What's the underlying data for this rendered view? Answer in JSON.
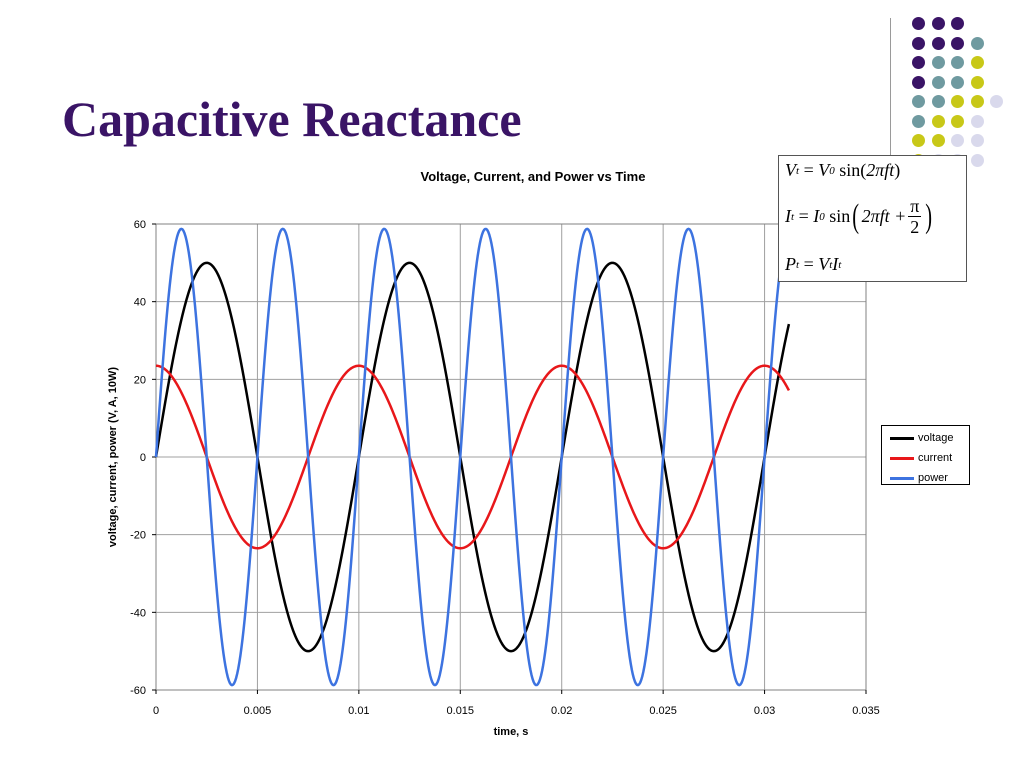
{
  "slide": {
    "title": "Capacitive Reactance"
  },
  "decor": {
    "dot_colors": {
      "purple": "#3a1466",
      "teal": "#6f9aa0",
      "yellow": "#c8c818",
      "lavender": "#d9d9ec"
    },
    "dot_rows": [
      [
        "purple",
        "purple",
        "purple"
      ],
      [
        "purple",
        "purple",
        "purple",
        "teal"
      ],
      [
        "purple",
        "teal",
        "teal",
        "yellow"
      ],
      [
        "purple",
        "teal",
        "teal",
        "yellow"
      ],
      [
        "teal",
        "teal",
        "yellow",
        "yellow",
        "lavender"
      ],
      [
        "teal",
        "yellow",
        "yellow",
        "lavender"
      ],
      [
        "yellow",
        "yellow",
        "lavender",
        "lavender"
      ],
      [
        "yellow",
        "lavender",
        "lavender",
        "lavender"
      ]
    ]
  },
  "formulas": {
    "v": {
      "lhs": "V",
      "lhs_sub": "t",
      "eq": "=",
      "rhs": "V",
      "rhs_sub": "0",
      "fn": "sin",
      "arg": "2πft"
    },
    "i": {
      "lhs": "I",
      "lhs_sub": "t",
      "eq": "=",
      "rhs": "I",
      "rhs_sub": "0",
      "fn": "sin",
      "arg": "2πft +",
      "num": "π",
      "den": "2"
    },
    "p": {
      "lhs": "P",
      "lhs_sub": "t",
      "eq": "=",
      "a": "V",
      "a_sub": "t",
      "b": "I",
      "b_sub": "t"
    }
  },
  "chart_data": {
    "type": "line",
    "title": "Voltage, Current, and Power vs Time",
    "xlabel": "time, s",
    "ylabel": "voltage, current, power (V, A, 10W)",
    "xlim": [
      0,
      0.035
    ],
    "ylim": [
      -60,
      60
    ],
    "xticks": [
      0,
      0.005,
      0.01,
      0.015,
      0.02,
      0.025,
      0.03,
      0.035
    ],
    "xtick_labels": [
      "0",
      "0.005",
      "0.01",
      "0.015",
      "0.02",
      "0.025",
      "0.03",
      "0.035"
    ],
    "yticks": [
      -60,
      -40,
      -20,
      0,
      20,
      40,
      60
    ],
    "ytick_labels": [
      "-60",
      "-40",
      "-20",
      "0",
      "20",
      "40",
      "60"
    ],
    "grid": "vertical and horizontal",
    "legend_position": "right",
    "x_end": 0.0312,
    "series": [
      {
        "name": "voltage",
        "color": "#000000",
        "amplitude": 50,
        "frequency_hz": 100,
        "phase": 0,
        "function": "amplitude*sin(2*pi*f*t)"
      },
      {
        "name": "current",
        "color": "#e8171a",
        "amplitude": 23.5,
        "frequency_hz": 100,
        "phase": 1.5708,
        "function": "amplitude*sin(2*pi*f*t + pi/2)"
      },
      {
        "name": "power",
        "color": "#3d73e0",
        "amplitude": 58.75,
        "frequency_hz": 200,
        "phase": 0,
        "function": "amplitude*sin(4*pi*f*t)"
      }
    ]
  }
}
